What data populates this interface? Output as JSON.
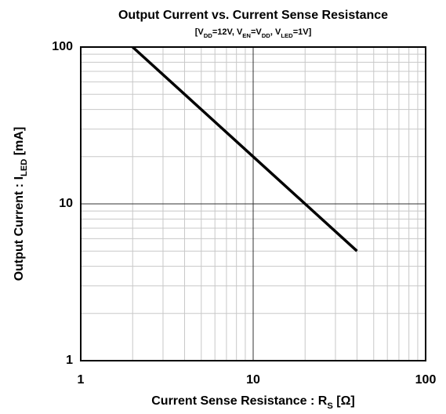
{
  "chart_data": {
    "type": "line",
    "title": "Output Current vs. Current Sense Resistance",
    "subtitle": [
      {
        "text": "[V"
      },
      {
        "text": "DD",
        "sub": true
      },
      {
        "text": "=12V, V"
      },
      {
        "text": "EN",
        "sub": true
      },
      {
        "text": "=V"
      },
      {
        "text": "DD",
        "sub": true
      },
      {
        "text": ", V"
      },
      {
        "text": "LED",
        "sub": true
      },
      {
        "text": "=1V]"
      }
    ],
    "xlabel": [
      {
        "text": "Current Sense Resistance : R"
      },
      {
        "text": "S",
        "sub": true
      },
      {
        "text": " [Ω]"
      }
    ],
    "ylabel": [
      {
        "text": "Output Current : I"
      },
      {
        "text": "LED",
        "sub": true
      },
      {
        "text": " [mA]"
      }
    ],
    "x": [
      2,
      4,
      10,
      20,
      40
    ],
    "series": [
      {
        "color": "#000000",
        "values": [
          100,
          50,
          20,
          10,
          5
        ]
      }
    ],
    "xlog": true,
    "ylog": true,
    "xlim": [
      1,
      100
    ],
    "ylim": [
      1,
      100
    ],
    "xticks": [
      1,
      10,
      100
    ],
    "yticks": [
      1,
      10,
      100
    ],
    "xminorticks": [
      2,
      3,
      4,
      5,
      6,
      7,
      8,
      9,
      20,
      30,
      40,
      50,
      60,
      70,
      80,
      90
    ],
    "yminorticks": [
      2,
      3,
      4,
      5,
      6,
      7,
      8,
      9,
      20,
      30,
      40,
      50,
      60,
      70,
      80,
      90
    ],
    "grid": true
  }
}
